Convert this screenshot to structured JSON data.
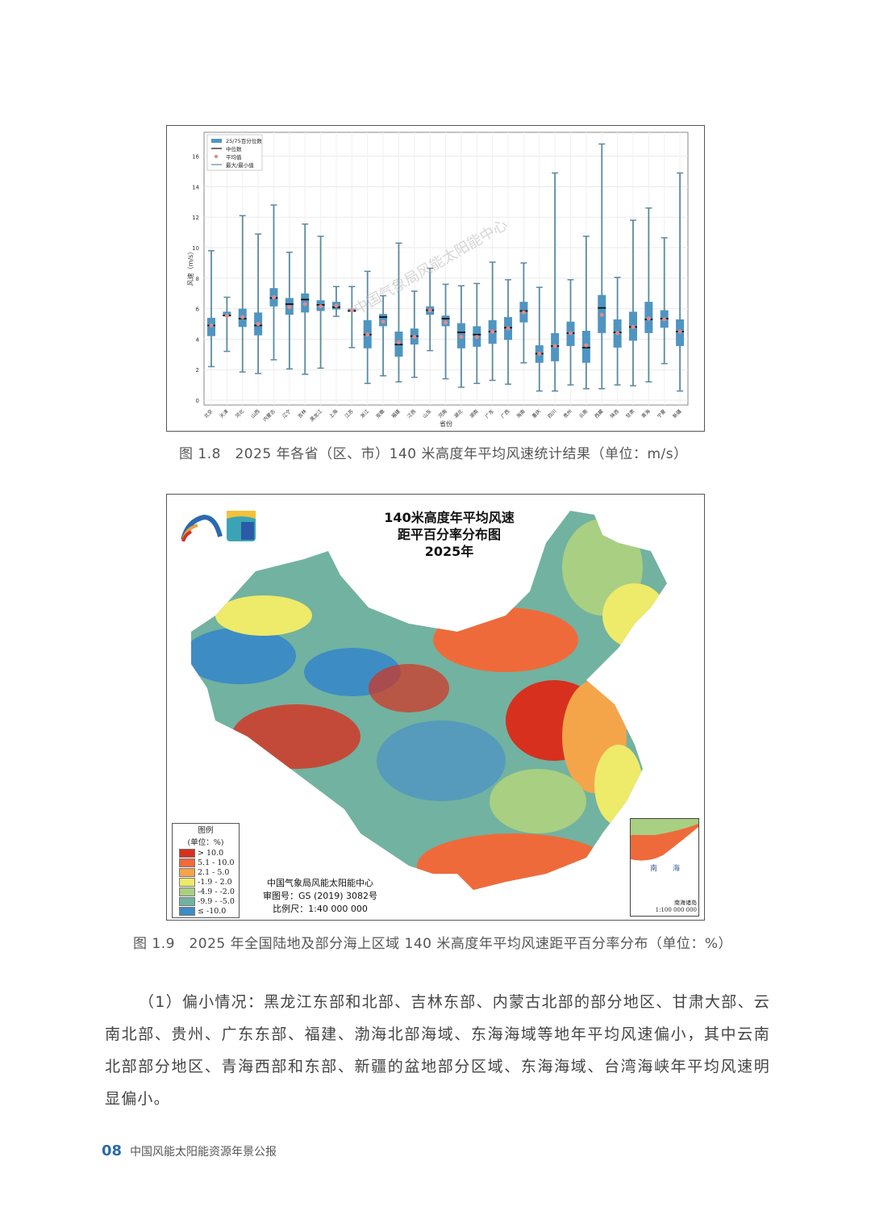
{
  "chart_data": {
    "type": "box",
    "title": "",
    "xlabel": "省份",
    "ylabel": "风速（m/s）",
    "ylim": [
      0,
      17
    ],
    "yticks": [
      0,
      2,
      4,
      6,
      8,
      10,
      12,
      14,
      16
    ],
    "grid": true,
    "legend_position": "top-left",
    "legend": [
      "25/75百分位数",
      "中位数",
      "平均值",
      "最大/最小值"
    ],
    "colors": {
      "box": "#4f95c2",
      "median": "#111111",
      "mean": "#e08a8a",
      "whisker": "#5a8aa0"
    },
    "categories": [
      "北京",
      "天津",
      "河北",
      "山西",
      "内蒙古",
      "辽宁",
      "吉林",
      "黑龙江",
      "上海",
      "江苏",
      "浙江",
      "安徽",
      "福建",
      "江西",
      "山东",
      "河南",
      "湖北",
      "湖南",
      "广东",
      "广西",
      "海南",
      "重庆",
      "四川",
      "贵州",
      "云南",
      "西藏",
      "陕西",
      "甘肃",
      "青海",
      "宁夏",
      "新疆"
    ],
    "min": [
      2.2,
      3.2,
      1.85,
      1.75,
      2.65,
      2.05,
      1.7,
      2.1,
      5.5,
      3.45,
      1.1,
      1.6,
      1.2,
      1.5,
      3.25,
      1.4,
      0.85,
      1.1,
      1.3,
      1.05,
      2.45,
      0.6,
      0.6,
      1.0,
      0.75,
      0.75,
      1.0,
      0.95,
      1.2,
      2.4,
      0.6
    ],
    "q1": [
      4.2,
      5.5,
      4.8,
      4.25,
      6.15,
      5.6,
      5.75,
      5.85,
      5.95,
      5.8,
      3.4,
      4.85,
      2.85,
      3.65,
      5.6,
      4.85,
      3.4,
      3.5,
      3.7,
      3.95,
      5.1,
      2.45,
      2.55,
      3.55,
      2.45,
      4.4,
      3.45,
      3.9,
      4.4,
      4.75,
      3.55
    ],
    "median": [
      4.9,
      5.55,
      5.35,
      4.9,
      6.7,
      6.3,
      6.6,
      6.25,
      6.1,
      5.85,
      4.3,
      5.45,
      3.65,
      4.2,
      5.9,
      5.35,
      4.45,
      4.3,
      4.5,
      4.75,
      5.85,
      3.05,
      3.55,
      4.4,
      3.45,
      6.05,
      4.45,
      4.8,
      5.3,
      5.35,
      4.5
    ],
    "q3": [
      5.4,
      5.8,
      6.0,
      5.75,
      7.35,
      6.7,
      7.0,
      6.55,
      6.45,
      6.0,
      5.25,
      5.65,
      4.5,
      4.7,
      6.15,
      5.55,
      5.05,
      4.85,
      5.25,
      5.45,
      6.45,
      3.6,
      4.4,
      5.15,
      4.55,
      6.9,
      5.3,
      5.8,
      6.45,
      5.9,
      5.3
    ],
    "max": [
      9.8,
      6.75,
      12.1,
      10.9,
      12.8,
      9.7,
      11.55,
      10.75,
      7.45,
      7.45,
      8.45,
      6.85,
      10.3,
      7.15,
      8.65,
      7.6,
      7.5,
      7.65,
      9.05,
      7.9,
      9.0,
      7.4,
      14.9,
      7.9,
      10.75,
      16.8,
      8.05,
      11.8,
      12.6,
      10.65,
      14.9
    ],
    "mean": [
      4.9,
      5.55,
      5.45,
      5.0,
      6.75,
      6.1,
      6.3,
      6.15,
      6.2,
      5.9,
      4.3,
      5.15,
      3.8,
      4.15,
      5.9,
      5.1,
      4.15,
      4.15,
      4.5,
      4.7,
      5.75,
      3.05,
      3.55,
      4.4,
      3.6,
      5.6,
      4.4,
      4.8,
      5.35,
      5.3,
      4.5
    ],
    "watermark": "中国气象局风能太阳能中心"
  },
  "captions": {
    "fig18": "图 1.8　2025 年各省（区、市）140 米高度年平均风速统计结果（单位：m/s）",
    "fig19": "图 1.9　2025 年全国陆地及部分海上区域 140 米高度年平均风速距平百分率分布（单位：%）"
  },
  "map": {
    "title_line1": "140米高度年平均风速",
    "title_line2": "距平百分率分布图",
    "title_line3": "2025年",
    "legend_title": "图例",
    "legend_unit": "(单位：%)",
    "legend_items": [
      {
        "label": "> 10.0",
        "color": "#d7301f"
      },
      {
        "label": "5.1 - 10.0",
        "color": "#ef6a3a"
      },
      {
        "label": "2.1 - 5.0",
        "color": "#f4a54a"
      },
      {
        "label": "-1.9 - 2.0",
        "color": "#eeea6a"
      },
      {
        "label": "-4.9 - -2.0",
        "color": "#a9cf82"
      },
      {
        "label": "-9.9 - -5.0",
        "color": "#72b2a0"
      },
      {
        "label": "≤ -10.0",
        "color": "#3d8cc4"
      }
    ],
    "credit_org": "中国气象局风能太阳能中心",
    "credit_review": "审图号：GS (2019) 3082号",
    "credit_scale": "比例尺：1:40 000 000",
    "inset_sea_1": "南",
    "inset_sea_2": "海",
    "inset_label": "南海诸岛",
    "inset_scale": "1:100 000 000"
  },
  "body_text": "（1）偏小情况：黑龙江东部和北部、吉林东部、内蒙古北部的部分地区、甘肃大部、云南北部、贵州、广东东部、福建、渤海北部海域、东海海域等地年平均风速偏小，其中云南北部部分地区、青海西部和东部、新疆的盆地部分区域、东海海域、台湾海峡年平均风速明显偏小。",
  "footer": {
    "page": "08",
    "title": "中国风能太阳能资源年景公报"
  }
}
